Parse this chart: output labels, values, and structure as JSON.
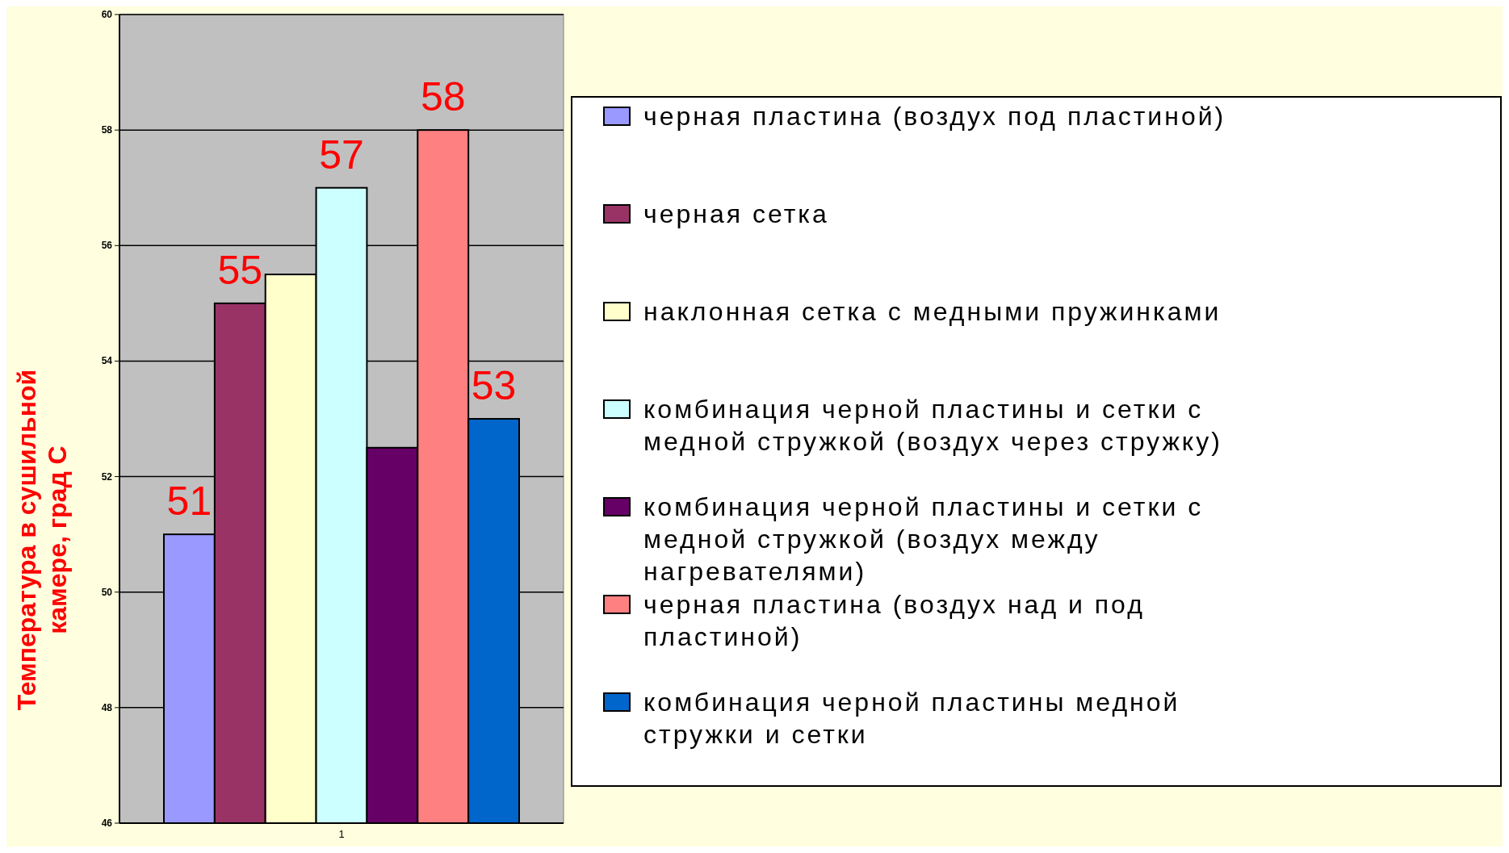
{
  "chart_data": {
    "type": "bar",
    "categories": [
      "1"
    ],
    "ylabel": "Температура в сушильной камере, град С",
    "ylim": [
      46,
      60
    ],
    "yticks": [
      46,
      48,
      50,
      52,
      54,
      56,
      58,
      60
    ],
    "grid": "y",
    "legend": "right",
    "series": [
      {
        "name": "черная пластина (воздух под пластиной)",
        "color": "#9999ff",
        "values": [
          51
        ],
        "value_labels": [
          "51"
        ]
      },
      {
        "name": "черная сетка",
        "color": "#993366",
        "values": [
          55
        ],
        "value_labels": [
          "55"
        ]
      },
      {
        "name": "наклонная сетка с медными пружинками",
        "color": "#ffffcc",
        "values": [
          55.5
        ],
        "value_labels": [
          null
        ]
      },
      {
        "name": "комбинация черной пластины и сетки с медной стружкой (воздух через стружку)",
        "color": "#ccffff",
        "values": [
          57
        ],
        "value_labels": [
          "57"
        ]
      },
      {
        "name": "комбинация черной пластины и сетки с медной стружкой (воздух между нагревателями)",
        "color": "#660066",
        "values": [
          52.5
        ],
        "value_labels": [
          null
        ]
      },
      {
        "name": "черная пластина (воздух над и под пластиной)",
        "color": "#ff8080",
        "values": [
          58
        ],
        "value_labels": [
          "58"
        ]
      },
      {
        "name": "комбинация черной пластины медной стружки и сетки",
        "color": "#0066cc",
        "values": [
          53
        ],
        "value_labels": [
          "53"
        ]
      }
    ]
  }
}
